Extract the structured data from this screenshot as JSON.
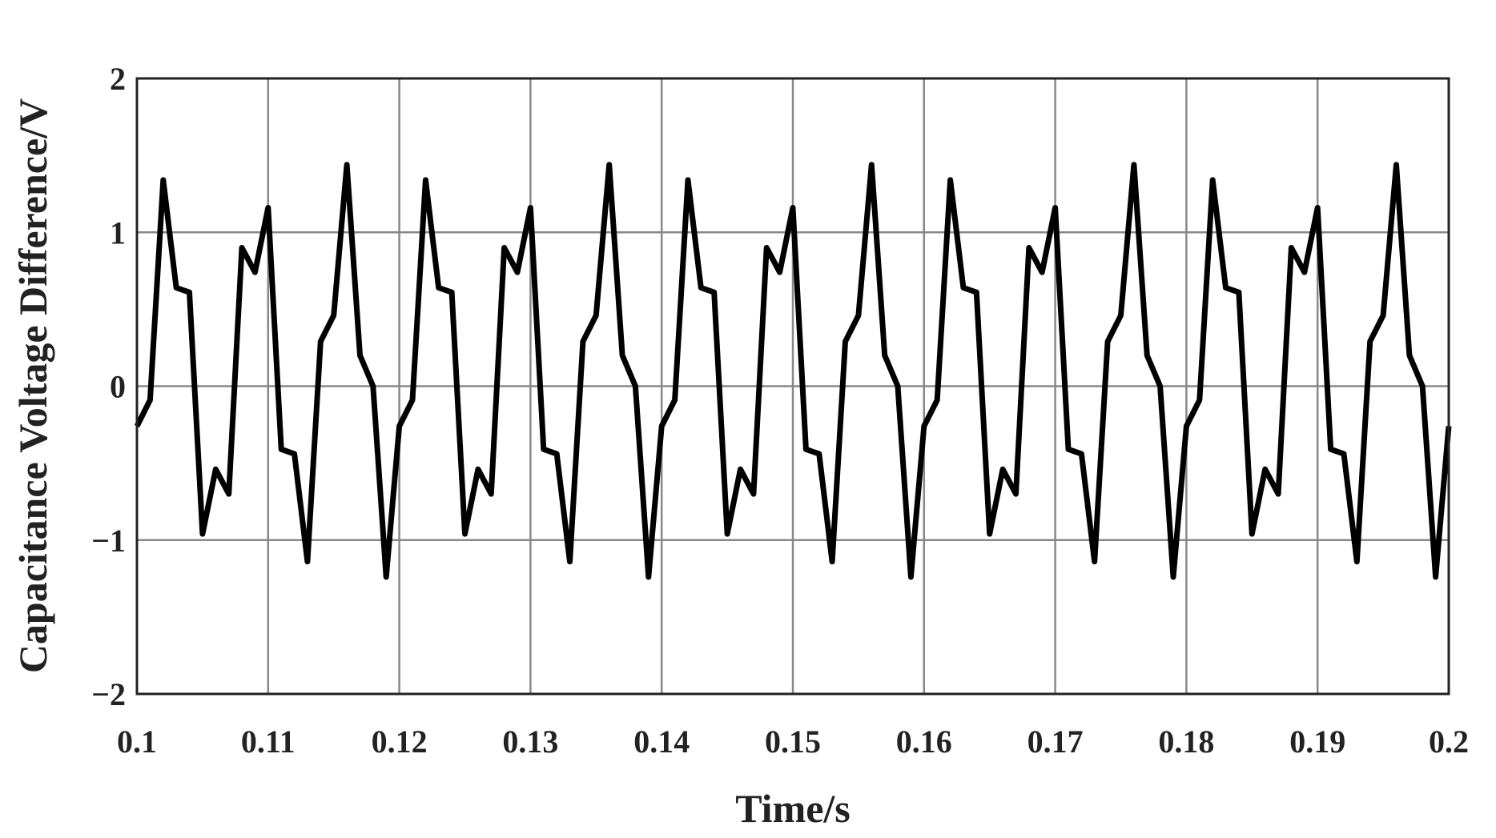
{
  "chart_data": {
    "type": "line",
    "xlabel": "Time/s",
    "ylabel": "Capacitance Voltage Difference/V",
    "xlim": [
      0.1,
      0.2
    ],
    "ylim": [
      -2,
      2
    ],
    "xticks": [
      0.1,
      0.11,
      0.12,
      0.13,
      0.14,
      0.15,
      0.16,
      0.17,
      0.18,
      0.19,
      0.2
    ],
    "yticks": [
      {
        "value": -2,
        "label": "−2"
      },
      {
        "value": -1,
        "label": "−1"
      },
      0,
      1,
      2
    ],
    "grid": true,
    "x": [
      0.1,
      0.101,
      0.102,
      0.103,
      0.104,
      0.105,
      0.106,
      0.107,
      0.108,
      0.109,
      0.11,
      0.111,
      0.112,
      0.113,
      0.114,
      0.115,
      0.116,
      0.117,
      0.118,
      0.119,
      0.12,
      0.121,
      0.122,
      0.123,
      0.124,
      0.125,
      0.126,
      0.127,
      0.128,
      0.129,
      0.13,
      0.131,
      0.132,
      0.133,
      0.134,
      0.135,
      0.136,
      0.137,
      0.138,
      0.139,
      0.14,
      0.141,
      0.142,
      0.143,
      0.144,
      0.145,
      0.146,
      0.147,
      0.148,
      0.149,
      0.15,
      0.151,
      0.152,
      0.153,
      0.154,
      0.155,
      0.156,
      0.157,
      0.158,
      0.159,
      0.16,
      0.161,
      0.162,
      0.163,
      0.164,
      0.165,
      0.166,
      0.167,
      0.168,
      0.169,
      0.17,
      0.171,
      0.172,
      0.173,
      0.174,
      0.175,
      0.176,
      0.177,
      0.178,
      0.179,
      0.18,
      0.181,
      0.182,
      0.183,
      0.184,
      0.185,
      0.186,
      0.187,
      0.188,
      0.189,
      0.19,
      0.191,
      0.192,
      0.193,
      0.194,
      0.195,
      0.196,
      0.197,
      0.198,
      0.199,
      0.2
    ],
    "series": [
      {
        "color": "#000000",
        "values": [
          -0.26,
          -0.09,
          1.34,
          0.64,
          0.61,
          -0.96,
          -0.54,
          -0.7,
          0.9,
          0.74,
          1.16,
          -0.41,
          -0.44,
          -1.14,
          0.29,
          0.46,
          1.44,
          0.2,
          0.0,
          -1.24,
          -0.26,
          -0.09,
          1.34,
          0.64,
          0.61,
          -0.96,
          -0.54,
          -0.7,
          0.9,
          0.74,
          1.16,
          -0.41,
          -0.44,
          -1.14,
          0.29,
          0.46,
          1.44,
          0.2,
          0.0,
          -1.24,
          -0.26,
          -0.09,
          1.34,
          0.64,
          0.61,
          -0.96,
          -0.54,
          -0.7,
          0.9,
          0.74,
          1.16,
          -0.41,
          -0.44,
          -1.14,
          0.29,
          0.46,
          1.44,
          0.2,
          0.0,
          -1.24,
          -0.26,
          -0.09,
          1.34,
          0.64,
          0.61,
          -0.96,
          -0.54,
          -0.7,
          0.9,
          0.74,
          1.16,
          -0.41,
          -0.44,
          -1.14,
          0.29,
          0.46,
          1.44,
          0.2,
          0.0,
          -1.24,
          -0.26,
          -0.09,
          1.34,
          0.64,
          0.61,
          -0.96,
          -0.54,
          -0.7,
          0.9,
          0.74,
          1.16,
          -0.41,
          -0.44,
          -1.14,
          0.29,
          0.46,
          1.44,
          0.2,
          0.0,
          -1.24,
          -0.26
        ]
      }
    ]
  }
}
